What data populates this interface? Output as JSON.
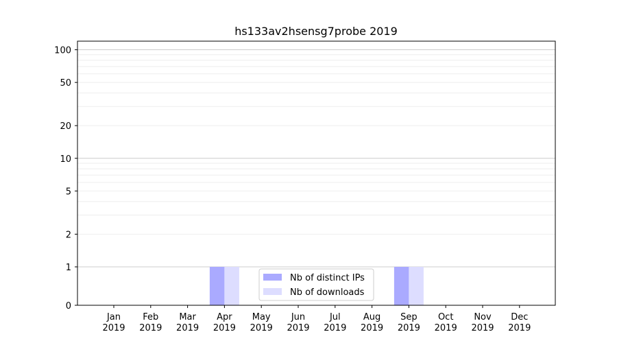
{
  "chart_data": {
    "type": "bar",
    "title": "hs133av2hsensg7probe 2019",
    "xlabel": "",
    "ylabel": "",
    "y_scale": "symlog",
    "ylim": [
      0,
      120
    ],
    "y_ticks": [
      0,
      1,
      2,
      5,
      10,
      20,
      50,
      100
    ],
    "categories": [
      [
        "Jan",
        "2019"
      ],
      [
        "Feb",
        "2019"
      ],
      [
        "Mar",
        "2019"
      ],
      [
        "Apr",
        "2019"
      ],
      [
        "May",
        "2019"
      ],
      [
        "Jun",
        "2019"
      ],
      [
        "Jul",
        "2019"
      ],
      [
        "Aug",
        "2019"
      ],
      [
        "Sep",
        "2019"
      ],
      [
        "Oct",
        "2019"
      ],
      [
        "Nov",
        "2019"
      ],
      [
        "Dec",
        "2019"
      ]
    ],
    "series": [
      {
        "name": "Nb of distinct IPs",
        "color": "#aaaaff",
        "values": [
          0,
          0,
          0,
          1,
          0,
          0,
          0,
          0,
          1,
          0,
          0,
          0
        ]
      },
      {
        "name": "Nb of downloads",
        "color": "#ddddff",
        "values": [
          0,
          0,
          0,
          1,
          0,
          0,
          0,
          0,
          1,
          0,
          0,
          0
        ]
      }
    ],
    "grid": true,
    "legend_position": "lower-center"
  }
}
